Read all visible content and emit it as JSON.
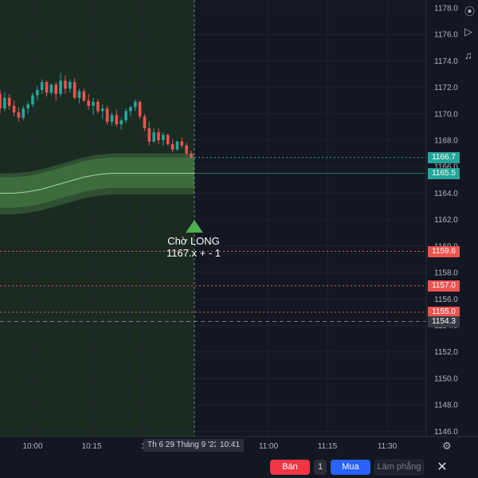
{
  "chart_data": {
    "type": "candlestick",
    "y_ticks": [
      1178.0,
      1176.0,
      1174.0,
      1172.0,
      1170.0,
      1168.0,
      1166.0,
      1164.0,
      1162.0,
      1160.0,
      1158.0,
      1156.0,
      1154.0,
      1152.0,
      1150.0,
      1148.0,
      1146.0
    ],
    "y_tick_labels": [
      "1178.0",
      "1176.0",
      "1174.0",
      "1172.0",
      "1170.0",
      "1168.0",
      "1166.0",
      "1164.0",
      "1162.0",
      "1160.0",
      "1158.0",
      "1156.0",
      "1154.0",
      "1152.0",
      "1150.0",
      "1148.0",
      "1146.0"
    ],
    "ylim": [
      1145.6,
      1178.6
    ],
    "x_tick_labels": [
      "10:00",
      "10:15",
      "1",
      "11:00",
      "11:15",
      "11:30"
    ],
    "candles": [
      [
        1171.5,
        1171.8,
        1170.0,
        1170.4
      ],
      [
        1170.4,
        1171.6,
        1170.2,
        1171.2
      ],
      [
        1171.2,
        1171.5,
        1170.3,
        1170.6
      ],
      [
        1170.6,
        1171.0,
        1169.8,
        1170.1
      ],
      [
        1170.1,
        1170.5,
        1169.4,
        1169.7
      ],
      [
        1169.7,
        1170.6,
        1169.5,
        1170.4
      ],
      [
        1170.4,
        1170.9,
        1170.0,
        1170.7
      ],
      [
        1170.7,
        1171.6,
        1170.5,
        1171.4
      ],
      [
        1171.4,
        1172.1,
        1171.0,
        1171.8
      ],
      [
        1171.8,
        1172.6,
        1171.5,
        1172.4
      ],
      [
        1172.4,
        1172.5,
        1171.3,
        1171.6
      ],
      [
        1171.6,
        1172.3,
        1171.4,
        1172.2
      ],
      [
        1172.2,
        1172.4,
        1171.0,
        1171.5
      ],
      [
        1171.5,
        1173.1,
        1171.3,
        1172.5
      ],
      [
        1172.5,
        1172.9,
        1171.5,
        1171.9
      ],
      [
        1171.9,
        1172.6,
        1171.6,
        1172.4
      ],
      [
        1172.4,
        1172.7,
        1171.1,
        1171.2
      ],
      [
        1171.2,
        1171.9,
        1170.8,
        1171.7
      ],
      [
        1171.7,
        1171.9,
        1170.9,
        1171.0
      ],
      [
        1171.0,
        1171.5,
        1170.3,
        1170.6
      ],
      [
        1170.6,
        1171.2,
        1169.9,
        1170.9
      ],
      [
        1170.9,
        1171.1,
        1170.0,
        1170.2
      ],
      [
        1170.2,
        1170.7,
        1169.6,
        1170.4
      ],
      [
        1170.4,
        1170.6,
        1169.2,
        1169.4
      ],
      [
        1169.4,
        1170.1,
        1169.1,
        1169.9
      ],
      [
        1169.9,
        1170.3,
        1169.0,
        1169.2
      ],
      [
        1169.2,
        1169.7,
        1168.8,
        1169.5
      ],
      [
        1169.5,
        1170.4,
        1169.3,
        1170.2
      ],
      [
        1170.2,
        1170.6,
        1169.8,
        1170.5
      ],
      [
        1170.5,
        1171.1,
        1170.2,
        1170.9
      ],
      [
        1170.9,
        1171.0,
        1169.6,
        1169.8
      ],
      [
        1169.8,
        1170.0,
        1168.7,
        1168.9
      ],
      [
        1168.9,
        1169.4,
        1167.6,
        1167.9
      ],
      [
        1167.9,
        1168.9,
        1167.8,
        1168.6
      ],
      [
        1168.6,
        1168.9,
        1167.7,
        1168.0
      ],
      [
        1168.0,
        1168.6,
        1167.6,
        1168.4
      ],
      [
        1168.4,
        1168.5,
        1167.6,
        1167.7
      ],
      [
        1167.7,
        1168.1,
        1167.1,
        1167.3
      ],
      [
        1167.3,
        1168.0,
        1167.2,
        1167.9
      ],
      [
        1167.9,
        1168.2,
        1167.4,
        1167.6
      ],
      [
        1167.6,
        1167.8,
        1166.8,
        1167.0
      ],
      [
        1167.0,
        1167.2,
        1166.6,
        1166.7
      ]
    ],
    "ema_line": [
      1164.0,
      1164.0,
      1164.1,
      1164.3,
      1164.6,
      1164.9,
      1165.2,
      1165.4,
      1165.5,
      1165.5,
      1165.5,
      1165.5,
      1165.5,
      1165.5,
      1165.5
    ],
    "band_upper_offset": 1.2,
    "band_lower_offset": 1.1,
    "outer_upper_offset": 1.5,
    "outer_lower_offset": 1.6,
    "levels": [
      {
        "value": 1166.7,
        "label": "1166.7",
        "color": "#26a69a",
        "style": "dotted"
      },
      {
        "value": 1165.5,
        "label": "1165.5",
        "color": "#26a69a",
        "style": "solid"
      },
      {
        "value": 1159.6,
        "label": "1159.6",
        "color": "#ef5350",
        "style": "dotted"
      },
      {
        "value": 1157.0,
        "label": "1157.0",
        "color": "#ef5350",
        "style": "dotted"
      },
      {
        "value": 1155.0,
        "label": "1155.0",
        "color": "#ef5350",
        "style": "dotted"
      },
      {
        "value": 1154.3,
        "label": "1154.3",
        "color": "#363a45",
        "style": "dashed"
      }
    ],
    "signal": {
      "line1": "Chờ LONG",
      "line2": "1167.x + - 1",
      "color": "#4caf50"
    }
  },
  "crosshair": {
    "time_label": "Th 6 29 Tháng 9 '23",
    "time_value": "10:41"
  },
  "toolbar": {
    "sell_label": "Bán",
    "quantity": "1",
    "buy_label": "Mua",
    "flatten_label": "Làm phẳng",
    "close_label": "✕"
  },
  "colors": {
    "background": "#131722",
    "up": "#26a69a",
    "down": "#ef5350",
    "highlight": "#1a2c22",
    "sell_button": "#f23645",
    "buy_button": "#2962ff"
  },
  "icons": [
    "indicator-icon",
    "play-icon",
    "alert-bell-icon",
    "settings-gear-icon",
    "close-icon"
  ]
}
